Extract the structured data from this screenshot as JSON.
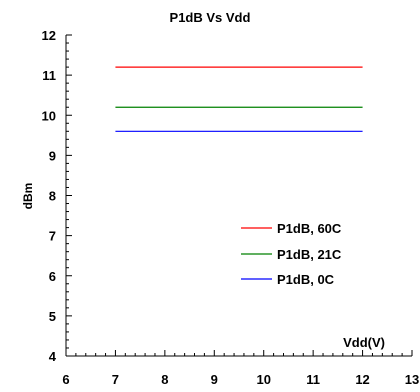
{
  "chart_data": {
    "type": "line",
    "title": "P1dB Vs Vdd",
    "xlabel": "Vdd(V)",
    "ylabel": "dBm",
    "xlim": [
      6,
      13
    ],
    "ylim": [
      4,
      12
    ],
    "x_ticks": [
      "6",
      "7",
      "8",
      "9",
      "10",
      "11",
      "12",
      "13"
    ],
    "y_ticks": [
      "4",
      "5",
      "6",
      "7",
      "8",
      "9",
      "10",
      "11",
      "12"
    ],
    "grid": false,
    "legend_position": "bottom-right",
    "series": [
      {
        "name": "P1dB, 60C",
        "color": "#ff0000",
        "x": [
          7,
          12
        ],
        "y": [
          11.2,
          11.2
        ]
      },
      {
        "name": "P1dB, 21C",
        "color": "#008000",
        "x": [
          7,
          12
        ],
        "y": [
          10.2,
          10.2
        ]
      },
      {
        "name": "P1dB, 0C",
        "color": "#0000ff",
        "x": [
          7,
          12
        ],
        "y": [
          9.6,
          9.6
        ]
      }
    ]
  }
}
